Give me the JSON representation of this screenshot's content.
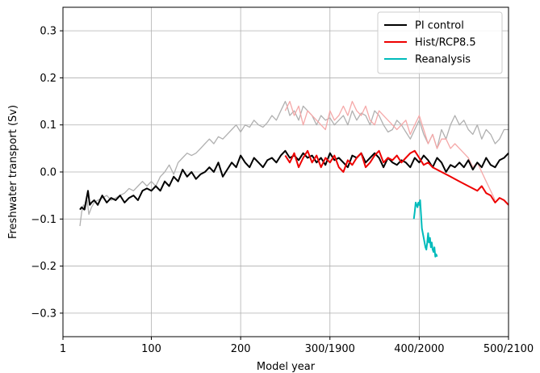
{
  "chart_data": {
    "type": "line",
    "xlabel": "Model year",
    "ylabel": "Freshwater transport (Sv)",
    "xlim": [
      1,
      500
    ],
    "ylim": [
      -0.35,
      0.35
    ],
    "grid": true,
    "legend_placement": "top-right",
    "x_ticks": [
      {
        "value": 1,
        "label": "1"
      },
      {
        "value": 100,
        "label": "100"
      },
      {
        "value": 200,
        "label": "200"
      },
      {
        "value": 300,
        "label": "300/1900"
      },
      {
        "value": 400,
        "label": "400/2000"
      },
      {
        "value": 500,
        "label": "500/2100"
      }
    ],
    "y_ticks": [
      {
        "value": -0.3,
        "label": "−0.3"
      },
      {
        "value": -0.2,
        "label": "−0.2"
      },
      {
        "value": -0.1,
        "label": "−0.1"
      },
      {
        "value": 0.0,
        "label": "0.0"
      },
      {
        "value": 0.1,
        "label": "0.1"
      },
      {
        "value": 0.2,
        "label": "0.2"
      },
      {
        "value": 0.3,
        "label": "0.3"
      }
    ],
    "series": [
      {
        "name": "",
        "color": "#b0b0b0",
        "width": 1.3,
        "x": [
          20,
          22,
          24,
          26,
          28,
          30,
          33,
          36,
          40,
          45,
          50,
          55,
          60,
          65,
          70,
          75,
          80,
          85,
          90,
          95,
          100,
          105,
          110,
          115,
          120,
          125,
          130,
          135,
          140,
          145,
          150,
          155,
          160,
          165,
          170,
          175,
          180,
          185,
          190,
          195,
          200,
          205,
          210,
          215,
          220,
          225,
          230,
          235,
          240,
          245,
          250,
          252,
          255,
          260,
          265,
          270,
          275,
          280,
          285,
          290,
          295,
          300,
          305,
          310,
          315,
          320,
          325,
          330,
          335,
          340,
          345,
          350,
          355,
          360,
          365,
          370,
          375,
          380,
          385,
          390,
          395,
          400,
          405,
          410,
          415,
          420,
          425,
          430,
          435,
          440,
          445,
          450,
          455,
          460,
          465,
          470,
          475,
          480,
          485,
          490,
          495,
          500
        ],
        "y": [
          -0.115,
          -0.085,
          -0.07,
          -0.08,
          -0.06,
          -0.09,
          -0.075,
          -0.065,
          -0.06,
          -0.055,
          -0.05,
          -0.06,
          -0.055,
          -0.05,
          -0.045,
          -0.035,
          -0.04,
          -0.03,
          -0.02,
          -0.03,
          -0.02,
          -0.03,
          -0.01,
          0.0,
          0.015,
          -0.005,
          0.02,
          0.03,
          0.04,
          0.035,
          0.04,
          0.05,
          0.06,
          0.07,
          0.06,
          0.075,
          0.07,
          0.08,
          0.09,
          0.1,
          0.085,
          0.1,
          0.095,
          0.11,
          0.1,
          0.095,
          0.105,
          0.12,
          0.11,
          0.13,
          0.15,
          0.14,
          0.12,
          0.13,
          0.11,
          0.14,
          0.13,
          0.12,
          0.1,
          0.12,
          0.11,
          0.115,
          0.1,
          0.11,
          0.12,
          0.1,
          0.13,
          0.11,
          0.125,
          0.12,
          0.1,
          0.13,
          0.12,
          0.1,
          0.085,
          0.09,
          0.11,
          0.1,
          0.085,
          0.07,
          0.09,
          0.11,
          0.08,
          0.06,
          0.08,
          0.05,
          0.09,
          0.07,
          0.1,
          0.12,
          0.1,
          0.11,
          0.09,
          0.08,
          0.1,
          0.07,
          0.09,
          0.08,
          0.06,
          0.07,
          0.09,
          0.09
        ]
      },
      {
        "name": "",
        "color": "#f5a8a8",
        "width": 1.3,
        "x": [
          250,
          255,
          260,
          265,
          270,
          275,
          280,
          285,
          290,
          295,
          300,
          305,
          310,
          315,
          320,
          325,
          330,
          335,
          340,
          345,
          350,
          355,
          360,
          365,
          370,
          375,
          380,
          385,
          390,
          395,
          400,
          405,
          410,
          415,
          420,
          425,
          430,
          435,
          440,
          445,
          450,
          455,
          460,
          465,
          470,
          475,
          480,
          485
        ],
        "y": [
          0.13,
          0.15,
          0.12,
          0.14,
          0.1,
          0.13,
          0.12,
          0.11,
          0.1,
          0.09,
          0.13,
          0.11,
          0.12,
          0.14,
          0.12,
          0.15,
          0.13,
          0.12,
          0.14,
          0.11,
          0.1,
          0.13,
          0.12,
          0.11,
          0.1,
          0.09,
          0.1,
          0.11,
          0.08,
          0.1,
          0.12,
          0.09,
          0.06,
          0.08,
          0.05,
          0.07,
          0.07,
          0.05,
          0.06,
          0.05,
          0.04,
          0.03,
          0.01,
          0.02,
          0.0,
          -0.02,
          -0.04,
          -0.06
        ]
      },
      {
        "name": "PI control",
        "color": "#000000",
        "width": 2,
        "x": [
          20,
          22,
          25,
          27,
          29,
          31,
          33,
          36,
          40,
          45,
          50,
          55,
          60,
          65,
          70,
          75,
          80,
          85,
          90,
          95,
          100,
          105,
          110,
          115,
          120,
          125,
          130,
          135,
          140,
          145,
          150,
          155,
          160,
          165,
          170,
          175,
          180,
          185,
          190,
          195,
          200,
          205,
          210,
          215,
          220,
          225,
          230,
          235,
          240,
          245,
          250,
          255,
          260,
          265,
          270,
          275,
          280,
          285,
          290,
          295,
          300,
          305,
          310,
          315,
          320,
          325,
          330,
          335,
          340,
          345,
          350,
          355,
          360,
          365,
          370,
          375,
          380,
          385,
          390,
          395,
          400,
          405,
          410,
          415,
          420,
          425,
          430,
          435,
          440,
          445,
          450,
          455,
          460,
          465,
          470,
          475,
          480,
          485,
          490,
          495,
          500
        ],
        "y": [
          -0.08,
          -0.075,
          -0.08,
          -0.06,
          -0.04,
          -0.07,
          -0.065,
          -0.06,
          -0.07,
          -0.05,
          -0.065,
          -0.055,
          -0.06,
          -0.05,
          -0.065,
          -0.055,
          -0.05,
          -0.06,
          -0.04,
          -0.035,
          -0.04,
          -0.03,
          -0.04,
          -0.02,
          -0.03,
          -0.01,
          -0.02,
          0.005,
          -0.01,
          0.0,
          -0.015,
          -0.005,
          0.0,
          0.01,
          0.0,
          0.02,
          -0.01,
          0.005,
          0.02,
          0.01,
          0.035,
          0.02,
          0.01,
          0.03,
          0.02,
          0.01,
          0.025,
          0.03,
          0.02,
          0.035,
          0.045,
          0.03,
          0.035,
          0.025,
          0.04,
          0.03,
          0.035,
          0.02,
          0.03,
          0.015,
          0.04,
          0.025,
          0.03,
          0.02,
          0.01,
          0.035,
          0.03,
          0.04,
          0.02,
          0.03,
          0.04,
          0.03,
          0.01,
          0.03,
          0.02,
          0.015,
          0.025,
          0.02,
          0.01,
          0.03,
          0.02,
          0.035,
          0.025,
          0.01,
          0.03,
          0.02,
          0.0,
          0.015,
          0.01,
          0.02,
          0.01,
          0.025,
          0.005,
          0.02,
          0.01,
          0.03,
          0.015,
          0.01,
          0.025,
          0.03,
          0.04
        ]
      },
      {
        "name": "Hist/RCP8.5",
        "color": "#ee0000",
        "width": 2,
        "x": [
          250,
          255,
          260,
          265,
          270,
          275,
          280,
          285,
          290,
          295,
          300,
          305,
          310,
          315,
          320,
          325,
          330,
          335,
          340,
          345,
          350,
          355,
          360,
          365,
          370,
          375,
          380,
          385,
          390,
          395,
          400,
          405,
          410,
          415,
          420,
          425,
          430,
          435,
          440,
          445,
          450,
          455,
          460,
          465,
          470,
          475,
          480,
          485,
          490,
          495,
          500
        ],
        "y": [
          0.035,
          0.02,
          0.04,
          0.01,
          0.03,
          0.045,
          0.02,
          0.035,
          0.01,
          0.03,
          0.02,
          0.035,
          0.01,
          0.0,
          0.025,
          0.015,
          0.03,
          0.04,
          0.01,
          0.02,
          0.035,
          0.045,
          0.02,
          0.03,
          0.025,
          0.035,
          0.02,
          0.03,
          0.04,
          0.045,
          0.03,
          0.015,
          0.02,
          0.01,
          0.005,
          0.0,
          -0.005,
          -0.01,
          -0.015,
          -0.02,
          -0.025,
          -0.03,
          -0.035,
          -0.04,
          -0.03,
          -0.045,
          -0.05,
          -0.065,
          -0.055,
          -0.06,
          -0.07
        ]
      },
      {
        "name": "Reanalysis",
        "color": "#00bbbb",
        "width": 2,
        "x": [
          394,
          395,
          396,
          397,
          398,
          399,
          400,
          401,
          402,
          403,
          404,
          405,
          406,
          407,
          408,
          409,
          410,
          411,
          412,
          413,
          414,
          415,
          416,
          417,
          418,
          419,
          420
        ],
        "y": [
          -0.1,
          -0.085,
          -0.065,
          -0.07,
          -0.075,
          -0.065,
          -0.07,
          -0.06,
          -0.09,
          -0.12,
          -0.13,
          -0.14,
          -0.15,
          -0.16,
          -0.165,
          -0.15,
          -0.13,
          -0.15,
          -0.14,
          -0.16,
          -0.15,
          -0.165,
          -0.17,
          -0.16,
          -0.18,
          -0.175,
          -0.18
        ]
      }
    ],
    "legend": [
      {
        "label": "PI control",
        "color": "#000000"
      },
      {
        "label": "Hist/RCP8.5",
        "color": "#ee0000"
      },
      {
        "label": "Reanalysis",
        "color": "#00bbbb"
      }
    ]
  }
}
